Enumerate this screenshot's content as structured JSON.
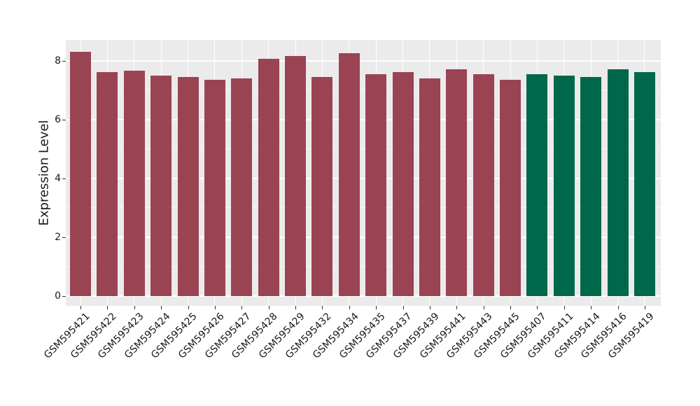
{
  "figure": {
    "kind": "static-bar-chart"
  },
  "colors": {
    "figure_bg": "#ffffff",
    "panel_bg": "#ebebeb",
    "grid_major": "#ffffff",
    "grid_minor": "rgba(255,255,255,0.6)",
    "tick_mark": "#333333",
    "text": "#1a1a1a",
    "group_colors": {
      "groupA": "#9a4453",
      "groupB": "#00684a"
    }
  },
  "chart_data": {
    "type": "bar",
    "title": "",
    "xlabel": "",
    "ylabel": "Expression Level",
    "ylim": [
      0,
      8.7
    ],
    "yticks_major": [
      0,
      2,
      4,
      6,
      8
    ],
    "yticks_minor": [
      1,
      3,
      5,
      7
    ],
    "grid": "on",
    "legend_position": "none",
    "categories": [
      "GSM595421",
      "GSM595422",
      "GSM595423",
      "GSM595424",
      "GSM595425",
      "GSM595426",
      "GSM595427",
      "GSM595428",
      "GSM595429",
      "GSM595432",
      "GSM595434",
      "GSM595435",
      "GSM595437",
      "GSM595439",
      "GSM595441",
      "GSM595443",
      "GSM595445",
      "GSM595407",
      "GSM595411",
      "GSM595414",
      "GSM595416",
      "GSM595419"
    ],
    "values": [
      8.3,
      7.6,
      7.65,
      7.5,
      7.45,
      7.35,
      7.4,
      8.05,
      8.15,
      7.45,
      8.25,
      7.55,
      7.6,
      7.4,
      7.7,
      7.55,
      7.35,
      7.55,
      7.5,
      7.45,
      7.7,
      7.6
    ],
    "groups": [
      "groupA",
      "groupA",
      "groupA",
      "groupA",
      "groupA",
      "groupA",
      "groupA",
      "groupA",
      "groupA",
      "groupA",
      "groupA",
      "groupA",
      "groupA",
      "groupA",
      "groupA",
      "groupA",
      "groupA",
      "groupB",
      "groupB",
      "groupB",
      "groupB",
      "groupB"
    ]
  }
}
